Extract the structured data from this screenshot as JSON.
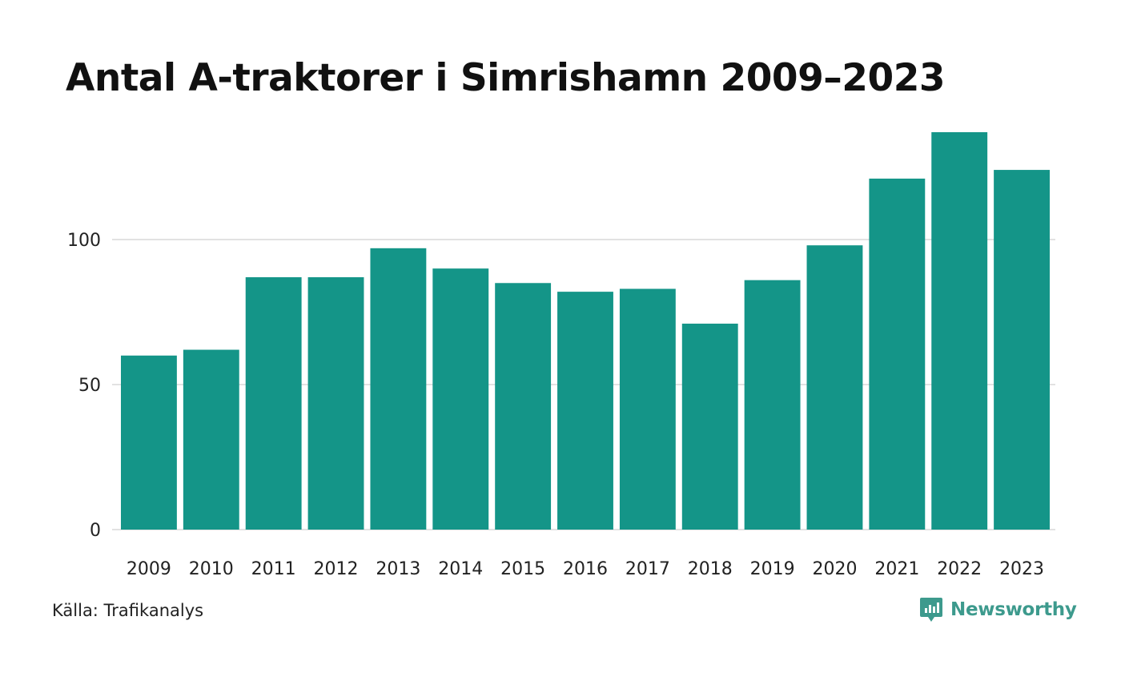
{
  "chart_data": {
    "type": "bar",
    "title": "Antal A-traktorer i Simrishamn 2009–2023",
    "xlabel": "",
    "ylabel": "",
    "categories": [
      "2009",
      "2010",
      "2011",
      "2012",
      "2013",
      "2014",
      "2015",
      "2016",
      "2017",
      "2018",
      "2019",
      "2020",
      "2021",
      "2022",
      "2023"
    ],
    "values": [
      60,
      62,
      87,
      87,
      97,
      90,
      85,
      82,
      83,
      71,
      86,
      98,
      121,
      137,
      124
    ],
    "ylim": [
      0,
      137
    ],
    "yticks": [
      0,
      50,
      100
    ],
    "grid": true,
    "bar_color": "#149588",
    "grid_color": "#e2e2e2"
  },
  "footer": {
    "source": "Källa: Trafikanalys",
    "brand": "Newsworthy",
    "brand_icon": "newsworthy-logo-icon",
    "brand_color": "#3d9a8d"
  }
}
